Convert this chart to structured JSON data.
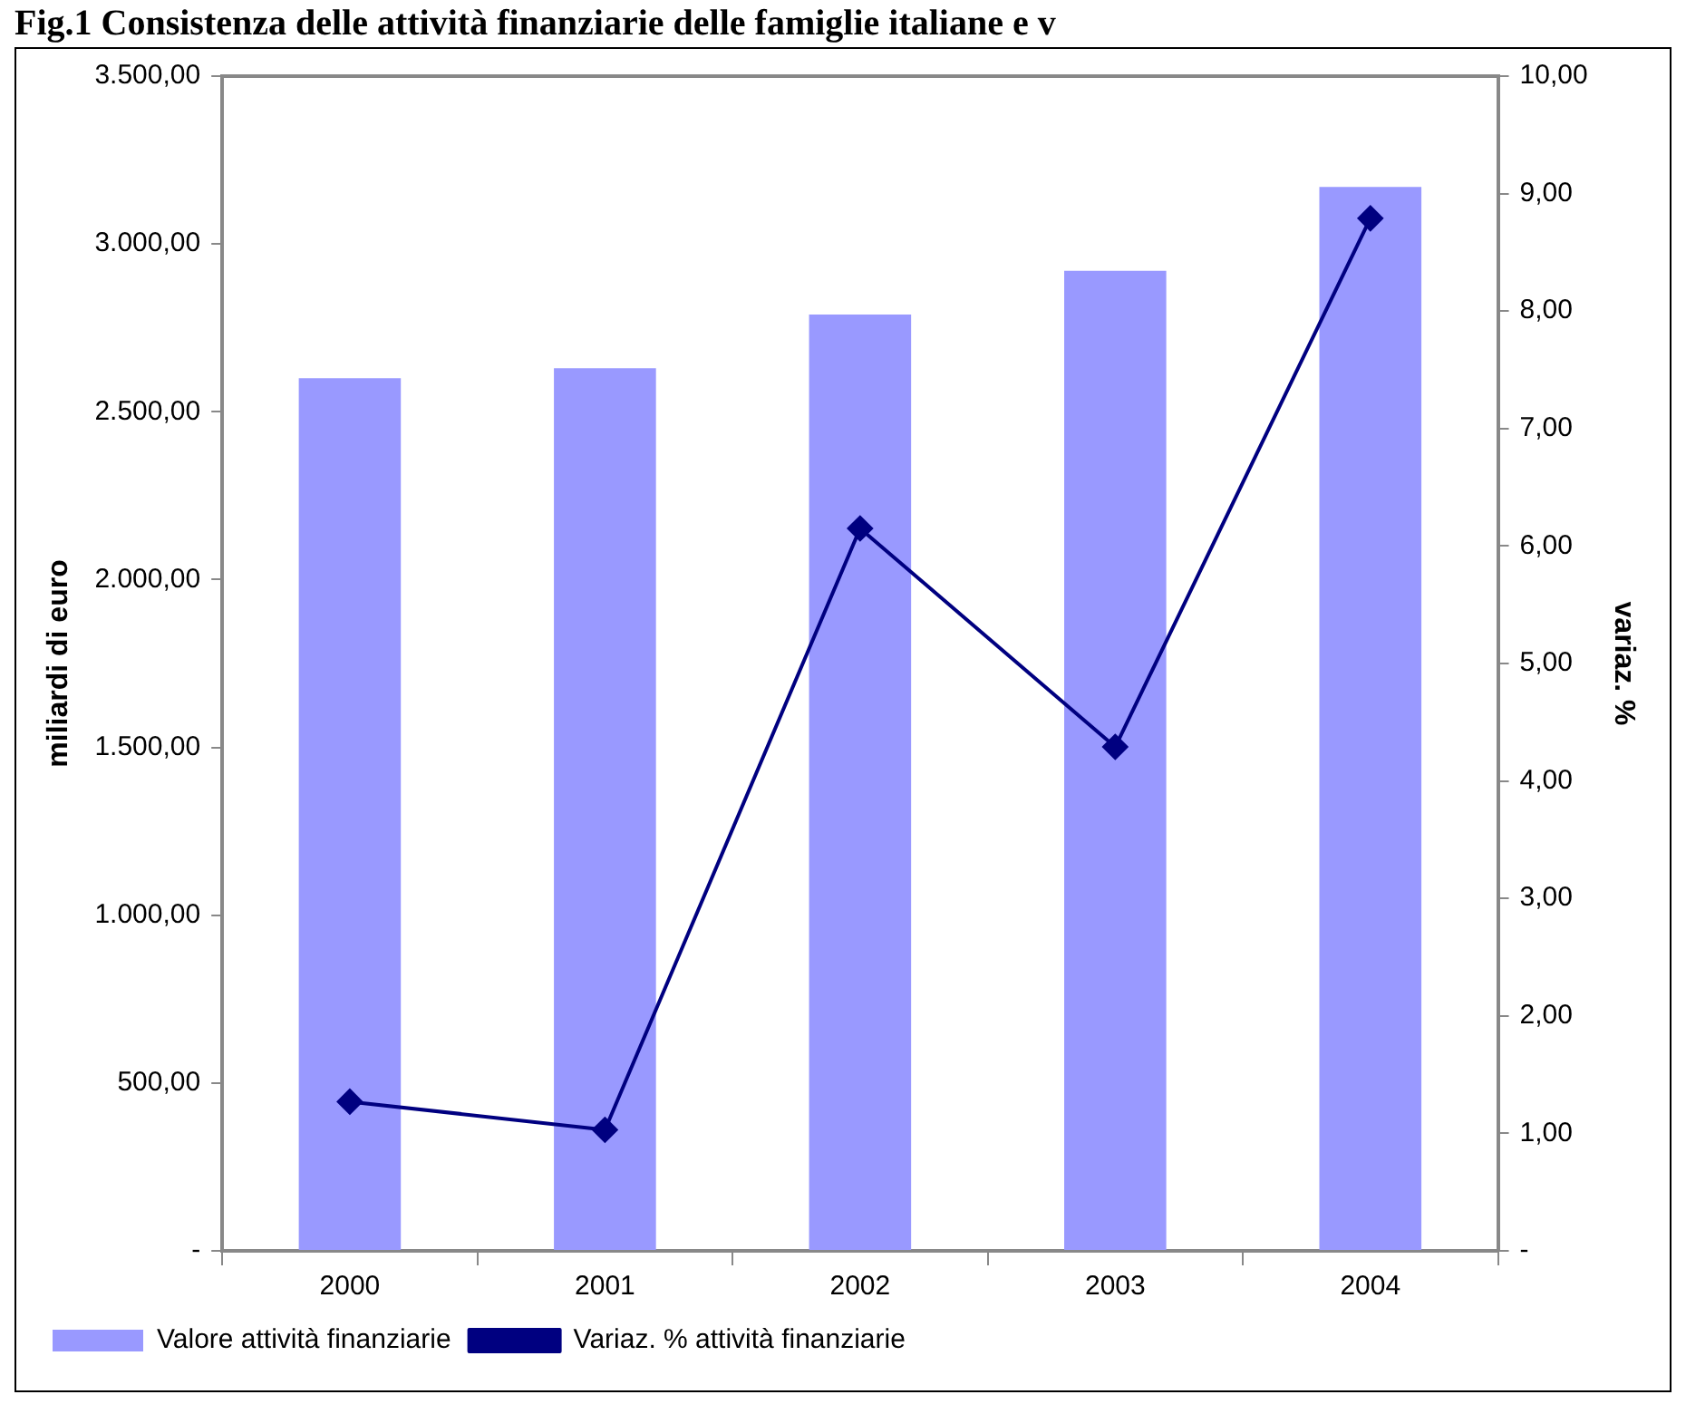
{
  "chart_data": {
    "type": "bar",
    "title": "Fig.1 Consistenza delle attività finanziarie delle famiglie italiane e v",
    "ylabel": "miliardi di euro",
    "y2label": "variaz. %",
    "categories": [
      "2000",
      "2001",
      "2002",
      "2003",
      "2004"
    ],
    "series": [
      {
        "name": "Valore attività finanziarie",
        "color": "#9999ff",
        "values": [
          2600,
          2630,
          2790,
          2920,
          3170
        ]
      },
      {
        "name": "Variaz. % attività finanziarie",
        "type": "line",
        "axis": "y2",
        "color": "#000080",
        "marker": "diamond",
        "values": [
          1.27,
          1.03,
          6.15,
          4.29,
          8.79
        ]
      }
    ],
    "ylim": [
      0,
      3500
    ],
    "yticks": [
      {
        "value": 0,
        "label": "-"
      },
      {
        "value": 500,
        "label": "500,00"
      },
      {
        "value": 1000,
        "label": "1.000,00"
      },
      {
        "value": 1500,
        "label": "1.500,00"
      },
      {
        "value": 2000,
        "label": "2.000,00"
      },
      {
        "value": 2500,
        "label": "2.500,00"
      },
      {
        "value": 3000,
        "label": "3.000,00"
      },
      {
        "value": 3500,
        "label": "3.500,00"
      }
    ],
    "y2lim": [
      0,
      10
    ],
    "y2ticks": [
      {
        "value": 0,
        "label": "-"
      },
      {
        "value": 1,
        "label": "1,00"
      },
      {
        "value": 2,
        "label": "2,00"
      },
      {
        "value": 3,
        "label": "3,00"
      },
      {
        "value": 4,
        "label": "4,00"
      },
      {
        "value": 5,
        "label": "5,00"
      },
      {
        "value": 6,
        "label": "6,00"
      },
      {
        "value": 7,
        "label": "7,00"
      },
      {
        "value": 8,
        "label": "8,00"
      },
      {
        "value": 9,
        "label": "9,00"
      },
      {
        "value": 10,
        "label": "10,00"
      }
    ],
    "grid": false,
    "legend": "bottom"
  }
}
